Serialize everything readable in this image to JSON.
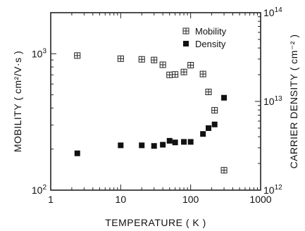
{
  "chart_data": {
    "type": "scatter",
    "x_scale": "log",
    "xlim": [
      1,
      1000
    ],
    "xlabel": "TEMPERATURE   ( K )",
    "xticks": [
      {
        "value": 1,
        "label": "1"
      },
      {
        "value": 10,
        "label": "10"
      },
      {
        "value": 100,
        "label": "100"
      },
      {
        "value": 1000,
        "label": "1000"
      }
    ],
    "y_left": {
      "scale": "log",
      "lim": [
        100,
        2000
      ],
      "label": "MOBILITY  ( cm²/V·s )",
      "ticks": [
        {
          "value": 100,
          "base": "10",
          "exp": "2"
        },
        {
          "value": 1000,
          "base": "10",
          "exp": "3"
        }
      ]
    },
    "y_right": {
      "scale": "log",
      "lim": [
        1000000000000.0,
        100000000000000.0
      ],
      "label": "CARRIER DENSITY  ( cm⁻² )",
      "ticks": [
        {
          "value": 1000000000000.0,
          "base": "10",
          "exp": "12"
        },
        {
          "value": 10000000000000.0,
          "base": "10",
          "exp": "13"
        },
        {
          "value": 100000000000000.0,
          "base": "10",
          "exp": "14"
        }
      ]
    },
    "legend_position": "top-right",
    "series": [
      {
        "name": "Mobility",
        "axis": "left",
        "marker": "boxed-cross",
        "color": "#222222",
        "x": [
          2.4,
          10,
          20,
          30,
          40,
          50,
          60,
          80,
          100,
          150,
          180,
          220,
          300
        ],
        "y": [
          970,
          920,
          910,
          900,
          830,
          700,
          705,
          735,
          825,
          710,
          525,
          385,
          140
        ]
      },
      {
        "name": "Density",
        "axis": "right",
        "marker": "filled-square",
        "color": "#111111",
        "x": [
          2.4,
          10,
          20,
          30,
          40,
          50,
          60,
          80,
          100,
          150,
          180,
          220,
          300
        ],
        "y": [
          2600000000000.0,
          3200000000000.0,
          3200000000000.0,
          3150000000000.0,
          3250000000000.0,
          3600000000000.0,
          3450000000000.0,
          3500000000000.0,
          3500000000000.0,
          4300000000000.0,
          5000000000000.0,
          5500000000000.0,
          11000000000000.0
        ]
      }
    ]
  }
}
